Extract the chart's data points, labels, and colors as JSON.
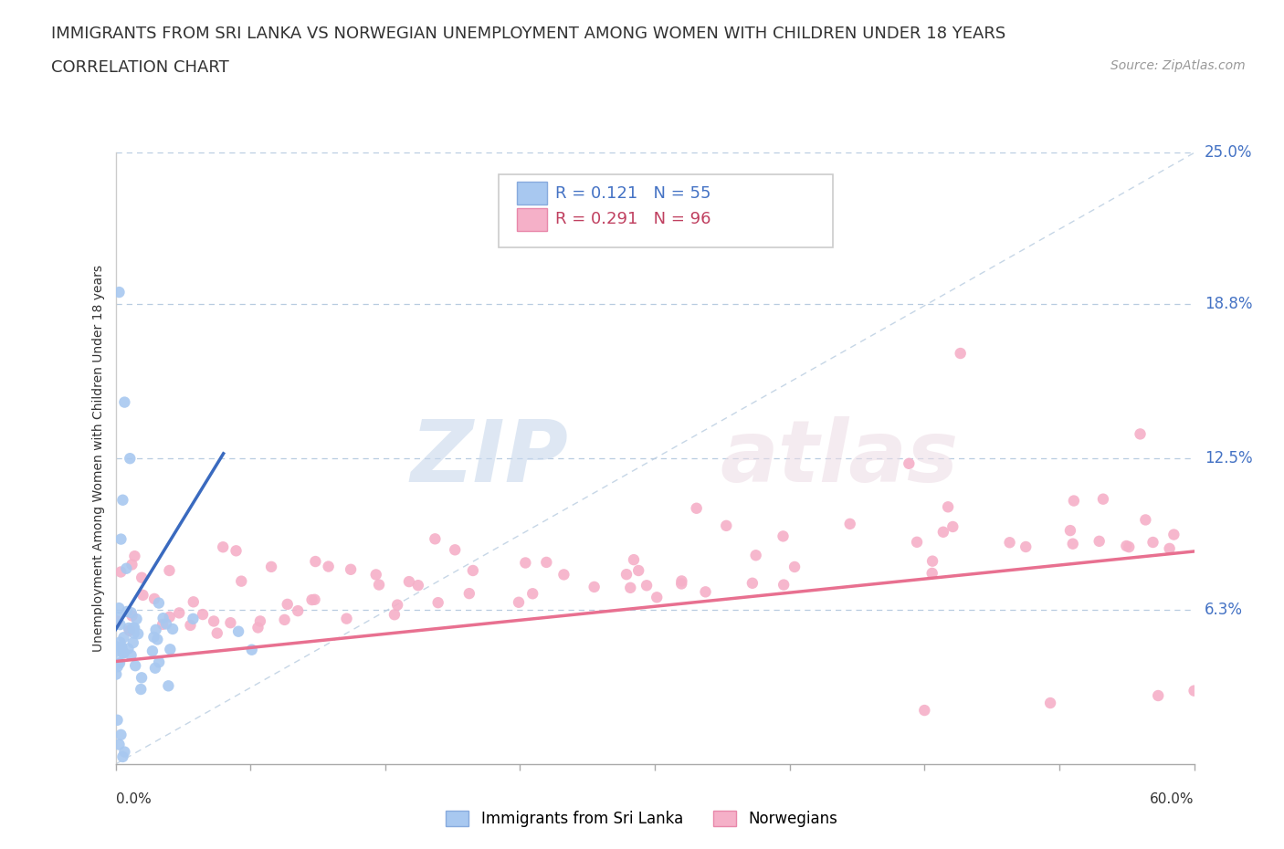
{
  "title_line1": "IMMIGRANTS FROM SRI LANKA VS NORWEGIAN UNEMPLOYMENT AMONG WOMEN WITH CHILDREN UNDER 18 YEARS",
  "title_line2": "CORRELATION CHART",
  "source": "Source: ZipAtlas.com",
  "ylabel": "Unemployment Among Women with Children Under 18 years",
  "ytick_labels": [
    "25.0%",
    "18.8%",
    "12.5%",
    "6.3%"
  ],
  "ytick_values": [
    0.25,
    0.188,
    0.125,
    0.063
  ],
  "xlim": [
    0.0,
    0.6
  ],
  "ylim": [
    0.0,
    0.25
  ],
  "color_sri_lanka": "#a8c8f0",
  "color_norwegian": "#f5b0c8",
  "trendline_sri_lanka": "#3a6abf",
  "trendline_norwegian": "#e87090",
  "watermark_zip": "ZIP",
  "watermark_atlas": "atlas",
  "r1_text": "R = 0.121",
  "n1_text": "N = 55",
  "r2_text": "R = 0.291",
  "n2_text": "N = 96"
}
